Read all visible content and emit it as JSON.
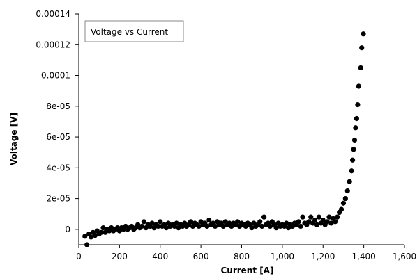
{
  "chart_data": {
    "type": "scatter",
    "title": "",
    "xlabel": "Current [A]",
    "ylabel": "Voltage [V]",
    "xlim": [
      0,
      1600
    ],
    "ylim": [
      -1e-05,
      0.00014
    ],
    "x_ticks": [
      0,
      200,
      400,
      600,
      800,
      1000,
      1200,
      1400,
      1600
    ],
    "x_tick_labels": [
      "0",
      "200",
      "400",
      "600",
      "800",
      "1,000",
      "1,200",
      "1,400",
      "1,600"
    ],
    "y_ticks": [
      0,
      2e-05,
      4e-05,
      6e-05,
      8e-05,
      0.0001,
      0.00012,
      0.00014
    ],
    "y_tick_labels": [
      "0",
      "2e-05",
      "4e-05",
      "6e-05",
      "8e-05",
      "0.0001",
      "0.00012",
      "0.00014"
    ],
    "grid": false,
    "legend": {
      "position": "top-left",
      "entries": [
        "Voltage vs Current"
      ]
    },
    "marker_color": "#000000",
    "series": [
      {
        "name": "Voltage vs Current",
        "points": [
          [
            30,
            -4.5e-06
          ],
          [
            40,
            -1e-05
          ],
          [
            50,
            -3e-06
          ],
          [
            60,
            -5e-06
          ],
          [
            70,
            -2e-06
          ],
          [
            80,
            -4e-06
          ],
          [
            90,
            -1e-06
          ],
          [
            100,
            -3e-06
          ],
          [
            110,
            -2e-06
          ],
          [
            120,
            1e-06
          ],
          [
            130,
            -2e-06
          ],
          [
            140,
            0.0
          ],
          [
            150,
            -1e-06
          ],
          [
            160,
            1e-06
          ],
          [
            170,
            -1e-06
          ],
          [
            180,
            0.0
          ],
          [
            190,
            1e-06
          ],
          [
            200,
            -1e-06
          ],
          [
            210,
            1e-06
          ],
          [
            220,
            0.0
          ],
          [
            230,
            2e-06
          ],
          [
            240,
            0.0
          ],
          [
            250,
            1e-06
          ],
          [
            260,
            2e-06
          ],
          [
            270,
            0.0
          ],
          [
            280,
            1e-06
          ],
          [
            290,
            3e-06
          ],
          [
            300,
            1e-06
          ],
          [
            310,
            2e-06
          ],
          [
            320,
            5e-06
          ],
          [
            330,
            1e-06
          ],
          [
            340,
            3e-06
          ],
          [
            350,
            2e-06
          ],
          [
            360,
            4e-06
          ],
          [
            370,
            1e-06
          ],
          [
            380,
            3e-06
          ],
          [
            390,
            2e-06
          ],
          [
            400,
            5e-06
          ],
          [
            410,
            2e-06
          ],
          [
            420,
            3e-06
          ],
          [
            430,
            1e-06
          ],
          [
            440,
            4e-06
          ],
          [
            450,
            2e-06
          ],
          [
            460,
            3e-06
          ],
          [
            470,
            2e-06
          ],
          [
            480,
            4e-06
          ],
          [
            490,
            1e-06
          ],
          [
            500,
            3e-06
          ],
          [
            510,
            2e-06
          ],
          [
            520,
            4e-06
          ],
          [
            530,
            2e-06
          ],
          [
            540,
            3e-06
          ],
          [
            550,
            5e-06
          ],
          [
            560,
            2e-06
          ],
          [
            570,
            4e-06
          ],
          [
            580,
            3e-06
          ],
          [
            590,
            2e-06
          ],
          [
            600,
            5e-06
          ],
          [
            610,
            3e-06
          ],
          [
            620,
            4e-06
          ],
          [
            630,
            2e-06
          ],
          [
            640,
            6e-06
          ],
          [
            650,
            3e-06
          ],
          [
            660,
            4e-06
          ],
          [
            670,
            2e-06
          ],
          [
            680,
            5e-06
          ],
          [
            690,
            3e-06
          ],
          [
            700,
            4e-06
          ],
          [
            710,
            2e-06
          ],
          [
            720,
            5e-06
          ],
          [
            730,
            3e-06
          ],
          [
            740,
            4e-06
          ],
          [
            750,
            2e-06
          ],
          [
            760,
            4e-06
          ],
          [
            770,
            3e-06
          ],
          [
            780,
            5e-06
          ],
          [
            790,
            2e-06
          ],
          [
            800,
            4e-06
          ],
          [
            810,
            3e-06
          ],
          [
            820,
            2e-06
          ],
          [
            830,
            4e-06
          ],
          [
            840,
            3e-06
          ],
          [
            850,
            1e-06
          ],
          [
            860,
            4e-06
          ],
          [
            870,
            2e-06
          ],
          [
            880,
            3e-06
          ],
          [
            890,
            5e-06
          ],
          [
            900,
            2e-06
          ],
          [
            910,
            8e-06
          ],
          [
            920,
            3e-06
          ],
          [
            930,
            4e-06
          ],
          [
            940,
            2e-06
          ],
          [
            950,
            5e-06
          ],
          [
            960,
            3e-06
          ],
          [
            970,
            1e-06
          ],
          [
            980,
            4e-06
          ],
          [
            990,
            2e-06
          ],
          [
            1000,
            3e-06
          ],
          [
            1010,
            2e-06
          ],
          [
            1020,
            4e-06
          ],
          [
            1030,
            1e-06
          ],
          [
            1040,
            3e-06
          ],
          [
            1050,
            2e-06
          ],
          [
            1060,
            4e-06
          ],
          [
            1070,
            3e-06
          ],
          [
            1080,
            5e-06
          ],
          [
            1090,
            2e-06
          ],
          [
            1100,
            8e-06
          ],
          [
            1110,
            4e-06
          ],
          [
            1120,
            3e-06
          ],
          [
            1130,
            5e-06
          ],
          [
            1140,
            8e-06
          ],
          [
            1150,
            4e-06
          ],
          [
            1160,
            6e-06
          ],
          [
            1170,
            3e-06
          ],
          [
            1180,
            8e-06
          ],
          [
            1190,
            4e-06
          ],
          [
            1200,
            6e-06
          ],
          [
            1210,
            3e-06
          ],
          [
            1220,
            5e-06
          ],
          [
            1230,
            8e-06
          ],
          [
            1240,
            4e-06
          ],
          [
            1250,
            7e-06
          ],
          [
            1260,
            5e-06
          ],
          [
            1270,
            8e-06
          ],
          [
            1280,
            1.1e-05
          ],
          [
            1290,
            1.3e-05
          ],
          [
            1300,
            1.7e-05
          ],
          [
            1310,
            2e-05
          ],
          [
            1320,
            2.5e-05
          ],
          [
            1330,
            3.1e-05
          ],
          [
            1340,
            3.8e-05
          ],
          [
            1345,
            4.5e-05
          ],
          [
            1350,
            5.2e-05
          ],
          [
            1355,
            5.8e-05
          ],
          [
            1360,
            6.6e-05
          ],
          [
            1365,
            7.2e-05
          ],
          [
            1370,
            8.1e-05
          ],
          [
            1375,
            9.3e-05
          ],
          [
            1385,
            0.000105
          ],
          [
            1390,
            0.000118
          ],
          [
            1398,
            0.000127
          ]
        ]
      }
    ]
  }
}
